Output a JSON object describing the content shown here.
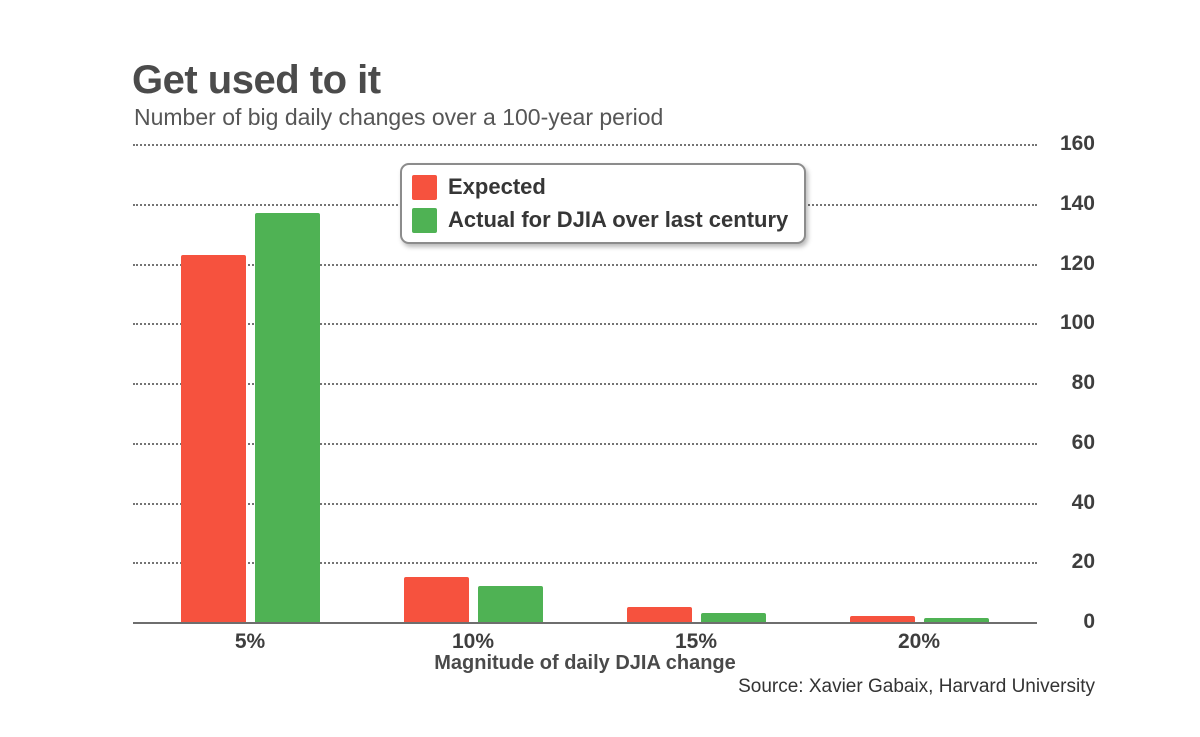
{
  "title": "Get used to it",
  "subtitle": "Number of big daily changes over a 100-year period",
  "source": "Source: Xavier Gabaix, Harvard University",
  "colors": {
    "expected": "#f6523e",
    "actual": "#4fb254",
    "grid": "#5c5c5c",
    "axis": "#6e6e6e",
    "title_text": "#4b4b4b"
  },
  "chart_data": {
    "type": "bar",
    "title": "Get used to it",
    "subtitle": "Number of big daily changes over a 100-year period",
    "categories": [
      "5%",
      "10%",
      "15%",
      "20%"
    ],
    "series": [
      {
        "name": "Expected",
        "color": "#f6523e",
        "values": [
          123,
          15,
          5,
          2
        ]
      },
      {
        "name": "Actual for DJIA over last century",
        "color": "#4fb254",
        "values": [
          137,
          12,
          3,
          1.5
        ]
      }
    ],
    "xlabel": "Magnitude of daily DJIA change",
    "ylabel": "",
    "ylim": [
      0,
      160
    ],
    "yticks": [
      0,
      20,
      40,
      60,
      80,
      100,
      120,
      140,
      160
    ],
    "grid": "horizontal-dotted",
    "legend_position": "top-center",
    "y_axis_side": "right"
  }
}
